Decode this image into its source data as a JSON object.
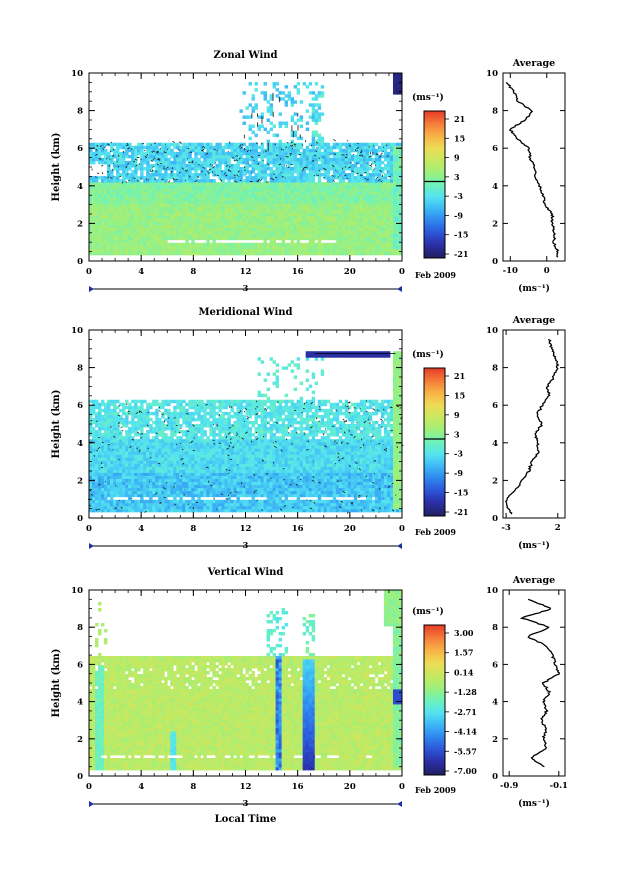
{
  "chart_data": [
    {
      "type": "heatmap",
      "title": "Zonal Wind",
      "ylabel": "Height (km)",
      "xlabel": "",
      "ylim": [
        0,
        10
      ],
      "xlim": [
        0,
        24
      ],
      "x_ticks": [
        "0",
        "4",
        "8",
        "12",
        "16",
        "20",
        "0"
      ],
      "y_ticks": [
        "0",
        "2",
        "4",
        "6",
        "8",
        "10"
      ],
      "date_marker": "3",
      "date_label": "Feb 2009",
      "colorbar": {
        "unit": "(ms⁻¹)",
        "ticks": [
          "21",
          "15",
          "9",
          "3",
          "-3",
          "-9",
          "-15",
          "-21"
        ]
      },
      "profile": {
        "title": "Average",
        "x_ticks": [
          "-10",
          "0"
        ],
        "xlabel": "(ms⁻¹)",
        "xlim": [
          -12,
          5
        ],
        "heights": [
          0.2,
          0.5,
          1,
          1.5,
          2,
          2.5,
          3,
          3.5,
          4,
          4.5,
          5,
          5.5,
          6,
          6.5,
          7,
          7.5,
          8,
          8.5,
          9,
          9.5
        ],
        "values": [
          3,
          3,
          2,
          2,
          1.5,
          1.5,
          -0.5,
          -1,
          -2,
          -3,
          -3.5,
          -4.5,
          -5,
          -8,
          -10,
          -6,
          -4,
          -8,
          -9,
          -11
        ]
      }
    },
    {
      "type": "heatmap",
      "title": "Meridional Wind",
      "ylabel": "Height (km)",
      "xlabel": "",
      "ylim": [
        0,
        10
      ],
      "xlim": [
        0,
        24
      ],
      "x_ticks": [
        "0",
        "4",
        "8",
        "12",
        "16",
        "20",
        "0"
      ],
      "y_ticks": [
        "0",
        "2",
        "4",
        "6",
        "8",
        "10"
      ],
      "date_marker": "3",
      "date_label": "Feb 2009",
      "colorbar": {
        "unit": "(ms⁻¹)",
        "ticks": [
          "21",
          "15",
          "9",
          "3",
          "-3",
          "-9",
          "-15",
          "-21"
        ]
      },
      "profile": {
        "title": "Average",
        "x_ticks": [
          "-3",
          "2"
        ],
        "xlabel": "(ms⁻¹)",
        "xlim": [
          -3.3,
          2.7
        ],
        "heights": [
          0.2,
          0.5,
          1,
          1.5,
          2,
          2.5,
          3,
          3.5,
          4,
          4.5,
          5,
          5.5,
          6,
          6.5,
          7,
          7.5,
          8,
          8.5,
          9,
          9.5
        ],
        "values": [
          -2.5,
          -2.8,
          -3,
          -2,
          -1.5,
          -0.8,
          -0.5,
          0.2,
          0,
          -0.2,
          0.5,
          0,
          0.5,
          1.2,
          1.0,
          1.6,
          2.0,
          1.8,
          1.4,
          1.2
        ]
      }
    },
    {
      "type": "heatmap",
      "title": "Vertical Wind",
      "ylabel": "Height (km)",
      "xlabel": "Local Time",
      "ylim": [
        0,
        10
      ],
      "xlim": [
        0,
        24
      ],
      "x_ticks": [
        "0",
        "4",
        "8",
        "12",
        "16",
        "20",
        "0"
      ],
      "y_ticks": [
        "0",
        "2",
        "4",
        "6",
        "8",
        "10"
      ],
      "date_marker": "3",
      "date_label": "Feb 2009",
      "colorbar": {
        "unit": "(ms⁻¹)",
        "ticks": [
          "3.00",
          "1.57",
          "0.14",
          "-1.28",
          "-2.71",
          "-4.14",
          "-5.57",
          "-7.00"
        ]
      },
      "profile": {
        "title": "Average",
        "x_ticks": [
          "-0.9",
          "-0.1"
        ],
        "xlabel": "(ms⁻¹)",
        "xlim": [
          -1.0,
          0.0
        ],
        "heights": [
          0.5,
          1,
          1.5,
          2,
          2.5,
          3,
          3.5,
          4,
          4.5,
          5,
          5.5,
          6,
          6.5,
          7,
          7.5,
          8,
          8.5,
          9,
          9.5
        ],
        "values": [
          -0.35,
          -0.55,
          -0.3,
          -0.35,
          -0.3,
          -0.38,
          -0.3,
          -0.35,
          -0.25,
          -0.35,
          -0.1,
          -0.15,
          -0.2,
          -0.3,
          -0.6,
          -0.25,
          -0.7,
          -0.2,
          -0.6
        ]
      }
    }
  ]
}
